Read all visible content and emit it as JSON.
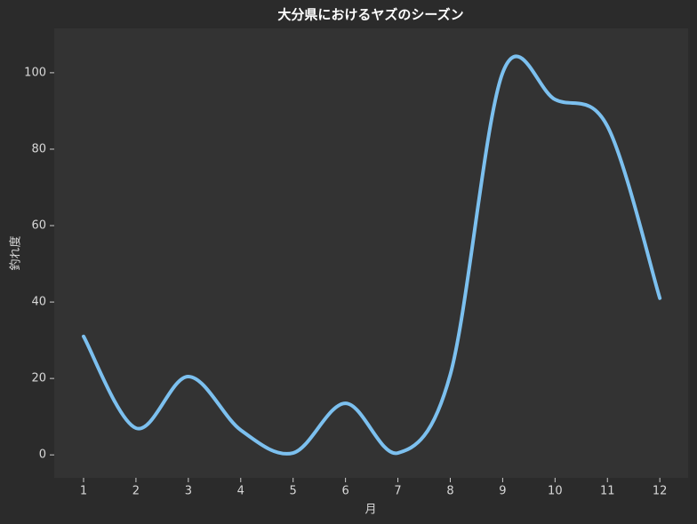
{
  "chart_data": {
    "type": "line",
    "title": "大分県におけるヤズのシーズン",
    "x_label": "月",
    "y_label": "釣れ度",
    "x": [
      1,
      2,
      3,
      4,
      5,
      6,
      7,
      8,
      9,
      10,
      11,
      12
    ],
    "series": [
      {
        "name": "釣れ度",
        "color": "#7cc0ef",
        "values": [
          31,
          7,
          20.5,
          6.5,
          0.5,
          13.5,
          0.5,
          21,
          100,
          93,
          86,
          41
        ]
      }
    ],
    "xlim": [
      0.44,
      12.54
    ],
    "ylim": [
      -6,
      111.6
    ],
    "xticks": [
      1,
      2,
      3,
      4,
      5,
      6,
      7,
      8,
      9,
      10,
      11,
      12
    ],
    "yticks": [
      0,
      20,
      40,
      60,
      80,
      100
    ],
    "grid": false
  }
}
